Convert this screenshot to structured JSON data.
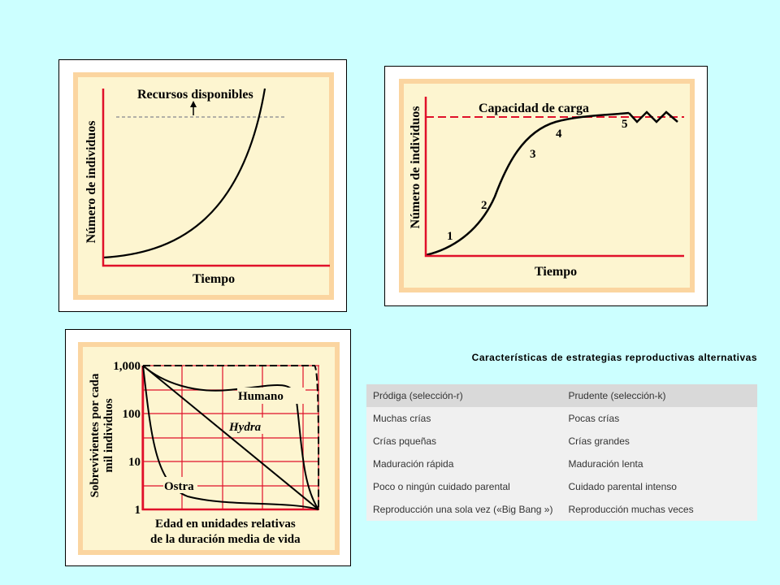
{
  "exponential": {
    "ylabel": "Número de individuos",
    "xlabel": "Tiempo",
    "annotation": "Recursos disponibles"
  },
  "logistic": {
    "ylabel": "Número de individuos",
    "xlabel": "Tiempo",
    "annotation": "Capacidad de carga",
    "phases": [
      "1",
      "2",
      "3",
      "4",
      "5"
    ]
  },
  "survivorship": {
    "ylabel_line1": "Sobrevivientes por cada",
    "ylabel_line2": "mil individuos",
    "xlabel_line1": "Edad en unidades relativas",
    "xlabel_line2": "de la duración media de vida",
    "yticks": [
      "1,000",
      "100",
      "10",
      "1"
    ],
    "curves": {
      "human": "Humano",
      "hydra": "Hydra",
      "oyster": "Ostra"
    }
  },
  "table": {
    "title": "Características de estrategias reproductivas alternativas",
    "headers": [
      "Pródiga (selección-r)",
      "Prudente (selección-k)"
    ],
    "rows": [
      [
        "Muchas crías",
        "Pocas crías"
      ],
      [
        "Crías pqueñas",
        "Crías grandes"
      ],
      [
        "Maduración rápida",
        "Maduración lenta"
      ],
      [
        "Poco o ningún cuidado parental",
        "Cuidado parental intenso"
      ],
      [
        "Reproducción una sola vez («Big Bang »)",
        "Reproducción muchas veces"
      ]
    ]
  },
  "colors": {
    "background": "#ccffff",
    "chart_bg": "#fdf5d0",
    "chart_border": "#fbd5a0",
    "axis": "#e0102a",
    "curve": "#000000"
  }
}
